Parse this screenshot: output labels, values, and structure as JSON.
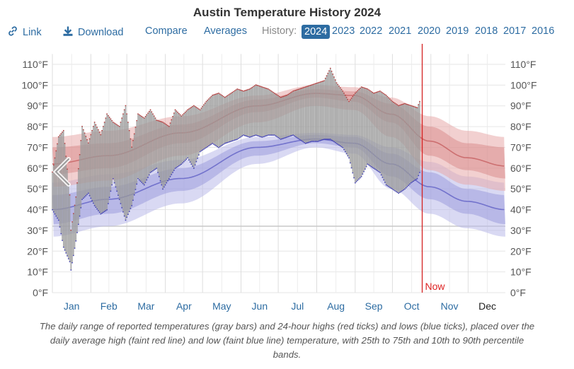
{
  "title": "Austin Temperature History 2024",
  "toolbar": {
    "link_label": "Link",
    "download_label": "Download",
    "compare_label": "Compare",
    "averages_label": "Averages",
    "history_label": "History:",
    "years": [
      "2024",
      "2023",
      "2022",
      "2021",
      "2020",
      "2019",
      "2018",
      "2017",
      "2016"
    ],
    "active_year": "2024"
  },
  "caption": "The daily range of reported temperatures (gray bars) and 24-hour highs (red ticks) and lows (blue ticks), placed over the daily average high (faint red line) and low (faint blue line) temperature, with 25th to 75th and 10th to 90th percentile bands.",
  "colors": {
    "high_line": "#cc6f70",
    "low_line": "#7272cc",
    "high_band_outer": "#e7a9a9",
    "high_band_inner": "#d88888",
    "low_band_outer": "#b9b9ea",
    "low_band_inner": "#9c9cdc",
    "range_bar": "#9a9a9a",
    "now_line": "#d42222",
    "freezing_line": "#c8c8c8",
    "month_text": "#2d6ca2"
  },
  "chart_data": {
    "type": "band-range",
    "ylim": [
      0,
      115
    ],
    "yticks": [
      0,
      10,
      20,
      30,
      40,
      50,
      60,
      70,
      80,
      90,
      100,
      110
    ],
    "ytick_labels": [
      "0°F",
      "10°F",
      "20°F",
      "30°F",
      "40°F",
      "50°F",
      "60°F",
      "70°F",
      "80°F",
      "90°F",
      "100°F",
      "110°F"
    ],
    "months": [
      "Jan",
      "Feb",
      "Mar",
      "Apr",
      "May",
      "Jun",
      "Jul",
      "Aug",
      "Sep",
      "Oct",
      "Nov",
      "Dec"
    ],
    "months_reported_through_index": 9,
    "freezing_line_value": 32,
    "now_label": "Now",
    "now_day": 299,
    "avg_high": {
      "days": [
        1,
        46,
        105,
        166,
        213,
        244,
        274,
        305,
        335,
        366
      ],
      "values": [
        62,
        66,
        77,
        90,
        96,
        95,
        86,
        73,
        65,
        61
      ]
    },
    "avg_low": {
      "days": [
        1,
        46,
        105,
        166,
        213,
        244,
        274,
        305,
        335,
        366
      ],
      "values": [
        40,
        45,
        55,
        70,
        74,
        72,
        62,
        51,
        44,
        40
      ]
    },
    "high_p10_p90": {
      "lower": [
        51,
        54,
        66,
        82,
        90,
        88,
        75,
        59,
        52,
        49
      ],
      "upper": [
        75,
        78,
        85,
        95,
        100,
        99,
        94,
        85,
        78,
        75
      ]
    },
    "high_p25_p75": {
      "lower": [
        57,
        60,
        72,
        87,
        94,
        92,
        82,
        66,
        59,
        55
      ],
      "upper": [
        70,
        72,
        81,
        93,
        98,
        97,
        91,
        80,
        72,
        70
      ]
    },
    "low_p10_p90": {
      "lower": [
        27,
        32,
        43,
        62,
        70,
        67,
        50,
        38,
        31,
        27
      ],
      "upper": [
        53,
        57,
        64,
        75,
        77,
        76,
        70,
        63,
        56,
        53
      ]
    },
    "low_p25_p75": {
      "lower": [
        33,
        38,
        49,
        66,
        72,
        70,
        56,
        45,
        38,
        33
      ],
      "upper": [
        47,
        51,
        60,
        73,
        76,
        75,
        67,
        58,
        50,
        47
      ]
    },
    "observed_range": {
      "days": [
        1,
        6,
        10,
        15,
        16,
        20,
        25,
        30,
        35,
        40,
        45,
        50,
        55,
        60,
        65,
        70,
        75,
        80,
        85,
        90,
        95,
        100,
        105,
        110,
        115,
        120,
        125,
        130,
        135,
        140,
        145,
        150,
        155,
        160,
        165,
        170,
        175,
        180,
        185,
        190,
        195,
        200,
        205,
        210,
        215,
        220,
        225,
        230,
        235,
        240,
        245,
        250,
        255,
        260,
        265,
        270,
        275,
        280,
        285,
        290,
        295,
        297
      ],
      "highs": [
        58,
        75,
        78,
        47,
        30,
        46,
        80,
        72,
        82,
        76,
        86,
        82,
        80,
        90,
        70,
        86,
        84,
        88,
        83,
        82,
        80,
        88,
        85,
        88,
        90,
        88,
        92,
        95,
        96,
        94,
        96,
        98,
        97,
        98,
        100,
        99,
        98,
        96,
        94,
        95,
        97,
        98,
        99,
        100,
        101,
        102,
        108,
        101,
        97,
        92,
        96,
        99,
        98,
        96,
        97,
        95,
        92,
        90,
        91,
        90,
        89,
        92
      ],
      "lows": [
        40,
        35,
        22,
        15,
        11,
        25,
        45,
        48,
        42,
        38,
        40,
        55,
        45,
        35,
        42,
        55,
        52,
        58,
        60,
        50,
        55,
        60,
        62,
        65,
        60,
        68,
        70,
        72,
        70,
        72,
        73,
        74,
        76,
        75,
        76,
        75,
        76,
        76,
        74,
        75,
        76,
        74,
        72,
        73,
        73,
        74,
        74,
        72,
        70,
        65,
        53,
        56,
        62,
        60,
        58,
        52,
        50,
        48,
        50,
        53,
        55,
        58
      ]
    }
  }
}
